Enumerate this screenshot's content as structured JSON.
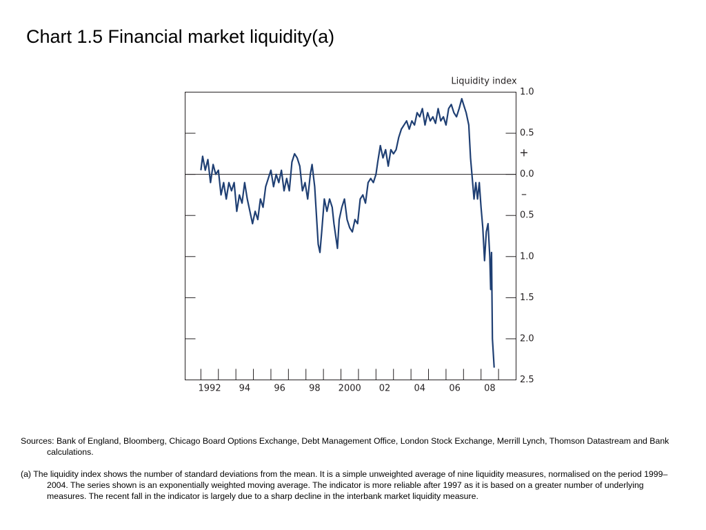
{
  "title": "Chart 1.5  Financial market liquidity(a)",
  "chart_data": {
    "type": "line",
    "y_axis_label": "Liquidity index",
    "annotations": [
      "+",
      "–"
    ],
    "x": [
      1992.0,
      1992.1,
      1992.25,
      1992.4,
      1992.55,
      1992.7,
      1992.85,
      1993.0,
      1993.15,
      1993.3,
      1993.45,
      1993.6,
      1993.75,
      1993.9,
      1994.05,
      1994.2,
      1994.35,
      1994.5,
      1994.65,
      1994.8,
      1994.95,
      1995.1,
      1995.25,
      1995.4,
      1995.55,
      1995.7,
      1995.85,
      1996.0,
      1996.15,
      1996.3,
      1996.45,
      1996.6,
      1996.75,
      1996.9,
      1997.05,
      1997.2,
      1997.35,
      1997.5,
      1997.65,
      1997.8,
      1997.95,
      1998.1,
      1998.25,
      1998.35,
      1998.5,
      1998.6,
      1998.7,
      1998.8,
      1998.9,
      1999.05,
      1999.2,
      1999.35,
      1999.5,
      1999.6,
      1999.7,
      1999.8,
      1999.9,
      2000.05,
      2000.2,
      2000.35,
      2000.5,
      2000.65,
      2000.8,
      2000.95,
      2001.1,
      2001.25,
      2001.4,
      2001.55,
      2001.7,
      2001.85,
      2002.0,
      2002.1,
      2002.25,
      2002.4,
      2002.55,
      2002.7,
      2002.85,
      2003.0,
      2003.15,
      2003.3,
      2003.45,
      2003.6,
      2003.75,
      2003.9,
      2004.05,
      2004.2,
      2004.35,
      2004.5,
      2004.65,
      2004.8,
      2004.95,
      2005.1,
      2005.25,
      2005.4,
      2005.55,
      2005.7,
      2005.85,
      2006.0,
      2006.15,
      2006.3,
      2006.45,
      2006.6,
      2006.75,
      2006.9,
      2007.0,
      2007.15,
      2007.3,
      2007.4,
      2007.5,
      2007.6,
      2007.7,
      2007.8,
      2007.9,
      2008.0,
      2008.1,
      2008.2,
      2008.3,
      2008.4,
      2008.5,
      2008.55,
      2008.6,
      2008.65,
      2008.75
    ],
    "series": [
      {
        "name": "Liquidity index",
        "color": "#1f3f73",
        "values": [
          0.05,
          0.22,
          0.05,
          0.18,
          -0.1,
          0.12,
          0.0,
          0.05,
          -0.25,
          -0.1,
          -0.3,
          -0.1,
          -0.2,
          -0.1,
          -0.45,
          -0.25,
          -0.35,
          -0.1,
          -0.3,
          -0.45,
          -0.6,
          -0.45,
          -0.55,
          -0.3,
          -0.4,
          -0.15,
          -0.05,
          0.05,
          -0.15,
          0.0,
          -0.1,
          0.05,
          -0.2,
          -0.05,
          -0.2,
          0.15,
          0.25,
          0.2,
          0.1,
          -0.2,
          -0.1,
          -0.3,
          0.0,
          0.12,
          -0.15,
          -0.5,
          -0.85,
          -0.95,
          -0.7,
          -0.3,
          -0.45,
          -0.3,
          -0.4,
          -0.6,
          -0.75,
          -0.9,
          -0.55,
          -0.4,
          -0.3,
          -0.55,
          -0.65,
          -0.7,
          -0.55,
          -0.6,
          -0.3,
          -0.25,
          -0.35,
          -0.1,
          -0.05,
          -0.1,
          0.0,
          0.15,
          0.35,
          0.2,
          0.3,
          0.1,
          0.3,
          0.25,
          0.3,
          0.45,
          0.55,
          0.6,
          0.65,
          0.55,
          0.65,
          0.6,
          0.75,
          0.7,
          0.8,
          0.6,
          0.75,
          0.65,
          0.7,
          0.62,
          0.8,
          0.65,
          0.7,
          0.6,
          0.8,
          0.85,
          0.75,
          0.7,
          0.8,
          0.92,
          0.85,
          0.75,
          0.6,
          0.2,
          -0.05,
          -0.3,
          -0.1,
          -0.3,
          -0.1,
          -0.4,
          -0.65,
          -1.05,
          -0.7,
          -0.6,
          -1.0,
          -1.4,
          -0.95,
          -2.0,
          -2.35
        ]
      }
    ],
    "xlim": [
      1991.1,
      2010
    ],
    "xticks": [
      {
        "value": 1992.5,
        "label": "1992"
      },
      {
        "value": 1994.5,
        "label": "94"
      },
      {
        "value": 1996.5,
        "label": "96"
      },
      {
        "value": 1998.5,
        "label": "98"
      },
      {
        "value": 2000.5,
        "label": "2000"
      },
      {
        "value": 2002.5,
        "label": "02"
      },
      {
        "value": 2004.5,
        "label": "04"
      },
      {
        "value": 2006.5,
        "label": "06"
      },
      {
        "value": 2008.5,
        "label": "08"
      }
    ],
    "xminorticks": [
      1992,
      1993,
      1994,
      1995,
      1996,
      1997,
      1998,
      1999,
      2000,
      2001,
      2002,
      2003,
      2004,
      2005,
      2006,
      2007,
      2008,
      2009
    ],
    "ylim": [
      -2.5,
      1
    ],
    "yticks": [
      {
        "value": 1,
        "label": "1.0"
      },
      {
        "value": 0.5,
        "label": "0.5"
      },
      {
        "value": 0,
        "label": "0.0"
      },
      {
        "value": -0.5,
        "label": "0.5"
      },
      {
        "value": -1,
        "label": "1.0"
      },
      {
        "value": -1.5,
        "label": "1.5"
      },
      {
        "value": -2,
        "label": "2.0"
      },
      {
        "value": -2.5,
        "label": "2.5"
      }
    ],
    "zero_line": 0
  },
  "notes": [
    "Sources:  Bank of England, Bloomberg, Chicago Board Options Exchange, Debt Management Office, London Stock Exchange, Merrill Lynch, Thomson Datastream and Bank calculations.",
    "(a)  The liquidity index shows the number of standard deviations from the mean.  It is a simple unweighted average of nine liquidity measures, normalised on the period 1999–2004.  The series shown is an exponentially weighted moving average.  The indicator is more reliable after 1997 as it is based on a greater number of underlying measures.  The recent fall in the indicator is largely due to a sharp decline in the interbank market liquidity measure."
  ]
}
